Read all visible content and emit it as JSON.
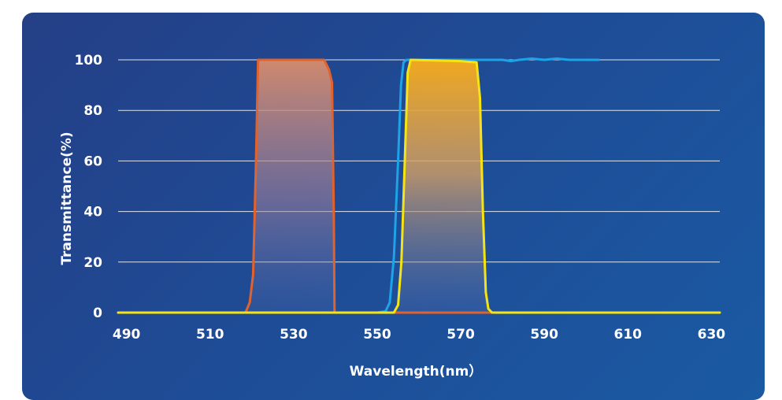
{
  "chart_data": {
    "type": "line",
    "xlabel": "Wavelength(nm）",
    "ylabel": "Transmittance(%)",
    "xlim": [
      488,
      632
    ],
    "ylim": [
      0,
      100
    ],
    "xticks": [
      490,
      510,
      530,
      550,
      570,
      590,
      610,
      630
    ],
    "yticks": [
      0,
      20,
      40,
      60,
      80,
      100
    ],
    "grid": true,
    "colors": {
      "background_start": "#243f86",
      "background_end": "#1a5aa3",
      "orange": "#e0622d",
      "yellow": "#f5e415",
      "blue": "#1ca3e8"
    },
    "series": [
      {
        "color": "#1ca3e8",
        "fill": false,
        "points": [
          [
            488,
            0
          ],
          [
            550,
            0
          ],
          [
            552,
            0.5
          ],
          [
            553,
            4
          ],
          [
            554,
            22
          ],
          [
            555,
            60
          ],
          [
            555.7,
            90
          ],
          [
            556.3,
            99
          ],
          [
            557,
            100
          ],
          [
            575,
            100
          ],
          [
            580,
            100
          ],
          [
            582,
            99.5
          ],
          [
            584,
            100
          ],
          [
            587,
            100.5
          ],
          [
            590,
            100
          ],
          [
            593,
            100.5
          ],
          [
            596,
            100
          ],
          [
            600,
            100
          ],
          [
            603,
            100
          ]
        ]
      },
      {
        "color": "#e0622d",
        "fill": true,
        "points": [
          [
            488,
            0
          ],
          [
            518.5,
            0
          ],
          [
            519.5,
            4
          ],
          [
            520.3,
            15
          ],
          [
            521,
            60
          ],
          [
            521.5,
            100
          ],
          [
            537.3,
            100
          ],
          [
            538.5,
            96
          ],
          [
            539.2,
            91
          ],
          [
            539.6,
            40
          ],
          [
            539.8,
            0
          ],
          [
            632,
            0
          ]
        ]
      },
      {
        "color": "#f5e415",
        "fill": true,
        "points": [
          [
            488,
            0
          ],
          [
            554,
            0
          ],
          [
            555,
            3
          ],
          [
            555.8,
            20
          ],
          [
            556.6,
            60
          ],
          [
            557.3,
            95
          ],
          [
            558,
            100
          ],
          [
            570,
            99.5
          ],
          [
            573.8,
            99
          ],
          [
            574.6,
            85
          ],
          [
            575.3,
            40
          ],
          [
            576,
            8
          ],
          [
            576.6,
            1.5
          ],
          [
            577.5,
            0
          ],
          [
            632,
            0
          ]
        ]
      }
    ]
  }
}
